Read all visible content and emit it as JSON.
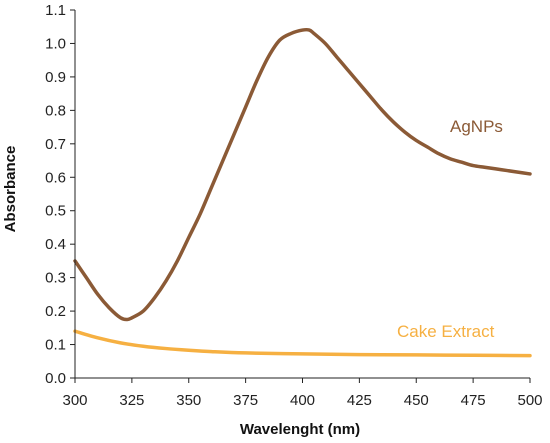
{
  "chart_data": {
    "type": "line",
    "xlabel": "Wavelenght (nm)",
    "ylabel": "Absorbance",
    "xlim": [
      300,
      500
    ],
    "ylim": [
      0.0,
      1.1
    ],
    "xticks": [
      300,
      325,
      350,
      375,
      400,
      425,
      450,
      475,
      500
    ],
    "xtick_labels": [
      "300",
      "325",
      "350",
      "375",
      "400",
      "425",
      "450",
      "475",
      "500"
    ],
    "yticks": [
      0.0,
      0.1,
      0.2,
      0.3,
      0.4,
      0.5,
      0.6,
      0.7,
      0.8,
      0.9,
      1.0,
      1.1
    ],
    "ytick_labels": [
      "0.0",
      "0.1",
      "0.2",
      "0.3",
      "0.4",
      "0.5",
      "0.6",
      "0.7",
      "0.8",
      "0.9",
      "1.0",
      "1.1"
    ],
    "grid": false,
    "series": [
      {
        "name": "AgNPs",
        "color": "#8B5A36",
        "x": [
          300,
          305,
          310,
          315,
          320,
          323,
          325,
          330,
          335,
          340,
          345,
          350,
          355,
          360,
          365,
          370,
          375,
          380,
          385,
          390,
          395,
          400,
          403,
          405,
          410,
          415,
          420,
          425,
          430,
          435,
          440,
          445,
          450,
          455,
          460,
          465,
          470,
          475,
          480,
          485,
          490,
          495,
          500
        ],
        "y": [
          0.35,
          0.3,
          0.25,
          0.21,
          0.18,
          0.175,
          0.18,
          0.2,
          0.24,
          0.29,
          0.35,
          0.42,
          0.49,
          0.57,
          0.65,
          0.73,
          0.81,
          0.89,
          0.96,
          1.01,
          1.03,
          1.04,
          1.04,
          1.03,
          1.0,
          0.96,
          0.92,
          0.88,
          0.84,
          0.8,
          0.765,
          0.735,
          0.71,
          0.69,
          0.67,
          0.655,
          0.645,
          0.635,
          0.63,
          0.625,
          0.62,
          0.615,
          0.61
        ]
      },
      {
        "name": "Cake Extract",
        "color": "#F6B042",
        "x": [
          300,
          310,
          320,
          330,
          340,
          350,
          360,
          375,
          400,
          425,
          450,
          475,
          500
        ],
        "y": [
          0.14,
          0.12,
          0.105,
          0.095,
          0.088,
          0.083,
          0.079,
          0.075,
          0.072,
          0.07,
          0.069,
          0.068,
          0.067
        ]
      }
    ]
  }
}
